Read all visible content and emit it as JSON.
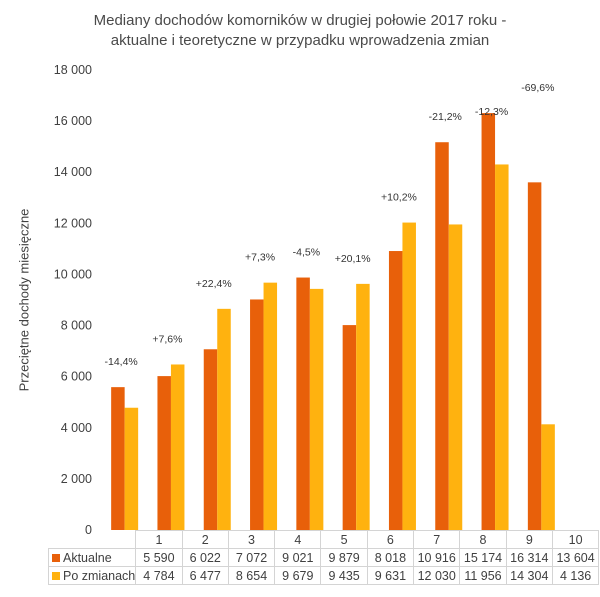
{
  "chart_data": {
    "type": "bar",
    "title_line1": "Mediany dochodów komorników w drugiej połowie 2017 roku -",
    "title_line2": "aktualne i teoretyczne w przypadku wprowadzenia zmian",
    "xlabel": "",
    "ylabel": "Przeciętne dochody miesięczne",
    "ylim": [
      0,
      18000
    ],
    "yticks": [
      0,
      2000,
      4000,
      6000,
      8000,
      10000,
      12000,
      14000,
      16000,
      18000
    ],
    "ytick_labels": [
      "0",
      "2 000",
      "4 000",
      "6 000",
      "8 000",
      "10 000",
      "12 000",
      "14 000",
      "16 000",
      "18 000"
    ],
    "grid": false,
    "legend": "data-table-bottom",
    "categories": [
      "1",
      "2",
      "3",
      "4",
      "5",
      "6",
      "7",
      "8",
      "9",
      "10"
    ],
    "series": [
      {
        "name": "Aktualne",
        "color": "#e8600a",
        "values": [
          5590,
          6022,
          7072,
          9021,
          9879,
          8018,
          10916,
          15174,
          16314,
          13604
        ],
        "labels": [
          "5 590",
          "6 022",
          "7 072",
          "9 021",
          "9 879",
          "8 018",
          "10 916",
          "15 174",
          "16 314",
          "13 604"
        ]
      },
      {
        "name": "Po zmianach",
        "color": "#ffb20f",
        "values": [
          4784,
          6477,
          8654,
          9679,
          9435,
          9631,
          12030,
          11956,
          14304,
          4136
        ],
        "labels": [
          "4 784",
          "6 477",
          "8 654",
          "9 679",
          "9 435",
          "9 631",
          "12 030",
          "11 956",
          "14 304",
          "4 136"
        ]
      }
    ],
    "annotations": [
      "-14,4%",
      "+7,6%",
      "+22,4%",
      "+7,3%",
      "-4,5%",
      "+20,1%",
      "+10,2%",
      "-21,2%",
      "-12,3%",
      "-69,6%"
    ]
  }
}
